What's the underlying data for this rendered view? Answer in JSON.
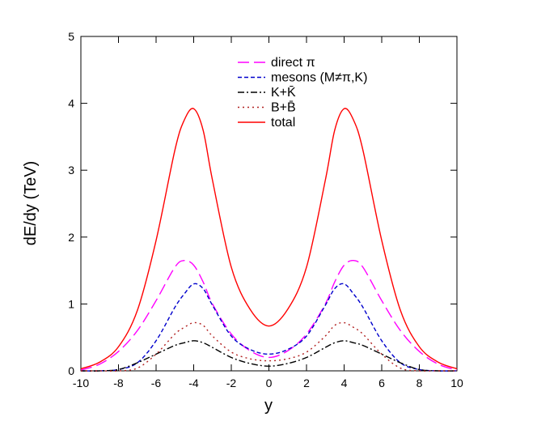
{
  "chart_data": {
    "type": "line",
    "title": "",
    "xlabel": "y",
    "ylabel": "dE/dy (TeV)",
    "xlim": [
      -10,
      10
    ],
    "ylim": [
      0,
      5
    ],
    "x_ticks": [
      -10,
      -8,
      -6,
      -4,
      -2,
      0,
      2,
      4,
      6,
      8,
      10
    ],
    "y_ticks": [
      0,
      1,
      2,
      3,
      4,
      5
    ],
    "grid": false,
    "legend_position": "top-center",
    "x": [
      -10,
      -9,
      -8,
      -7,
      -6,
      -5,
      -4.5,
      -4,
      -3.5,
      -3,
      -2,
      -1,
      0,
      1,
      2,
      3,
      3.5,
      4,
      4.5,
      5,
      6,
      7,
      8,
      9,
      10
    ],
    "series": [
      {
        "name": "direct π",
        "color": "#ff00ff",
        "dash": "long-dash",
        "values": [
          0.01,
          0.1,
          0.29,
          0.6,
          1.05,
          1.55,
          1.65,
          1.58,
          1.33,
          1.0,
          0.55,
          0.3,
          0.2,
          0.3,
          0.55,
          1.0,
          1.33,
          1.58,
          1.65,
          1.55,
          1.05,
          0.6,
          0.29,
          0.1,
          0.01
        ]
      },
      {
        "name": "mesons (M≠π,K)",
        "color": "#0000cc",
        "dash": "short-dash",
        "values": [
          0.0,
          0.0,
          0.02,
          0.12,
          0.45,
          0.95,
          1.15,
          1.3,
          1.23,
          0.98,
          0.52,
          0.32,
          0.25,
          0.32,
          0.52,
          0.98,
          1.23,
          1.3,
          1.15,
          0.95,
          0.45,
          0.12,
          0.02,
          0.0,
          0.0
        ]
      },
      {
        "name": "K+K̄",
        "color": "#000000",
        "dash": "dash-dot",
        "values": [
          0.0,
          0.0,
          0.02,
          0.12,
          0.25,
          0.38,
          0.42,
          0.45,
          0.42,
          0.35,
          0.2,
          0.11,
          0.07,
          0.11,
          0.2,
          0.35,
          0.42,
          0.45,
          0.42,
          0.38,
          0.25,
          0.12,
          0.02,
          0.0,
          0.0
        ]
      },
      {
        "name": "B+B̄",
        "color": "#b22222",
        "dash": "dotted",
        "values": [
          0.0,
          0.0,
          0.0,
          0.04,
          0.25,
          0.55,
          0.65,
          0.72,
          0.68,
          0.52,
          0.28,
          0.18,
          0.15,
          0.18,
          0.28,
          0.52,
          0.68,
          0.72,
          0.65,
          0.55,
          0.25,
          0.04,
          0.0,
          0.0,
          0.0
        ]
      },
      {
        "name": "total",
        "color": "#ff0000",
        "dash": "solid",
        "values": [
          0.03,
          0.13,
          0.36,
          0.9,
          1.95,
          3.3,
          3.75,
          3.92,
          3.6,
          2.85,
          1.55,
          0.92,
          0.67,
          0.92,
          1.55,
          2.85,
          3.6,
          3.92,
          3.75,
          3.3,
          1.95,
          0.9,
          0.36,
          0.13,
          0.03
        ]
      }
    ]
  }
}
